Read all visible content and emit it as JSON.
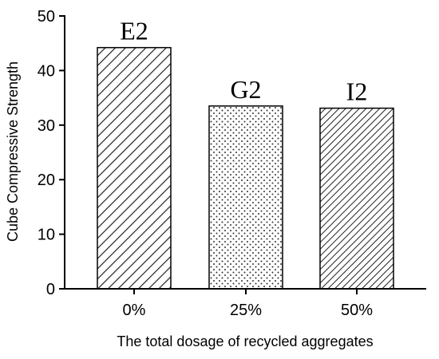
{
  "chart_data": {
    "type": "bar",
    "categories": [
      "0%",
      "25%",
      "50%"
    ],
    "values": [
      44.2,
      33.5,
      33.1
    ],
    "bar_labels": [
      "E2",
      "G2",
      "I2"
    ],
    "bar_patterns": [
      "hatch-wide",
      "dots",
      "hatch-dense"
    ],
    "xlabel": "The total dosage of recycled aggregates",
    "ylabel": "Cube Compressive Strength",
    "ylim": [
      0,
      50
    ],
    "yticks": [
      0,
      10,
      20,
      30,
      40,
      50
    ],
    "grid": false,
    "legend": "none"
  }
}
